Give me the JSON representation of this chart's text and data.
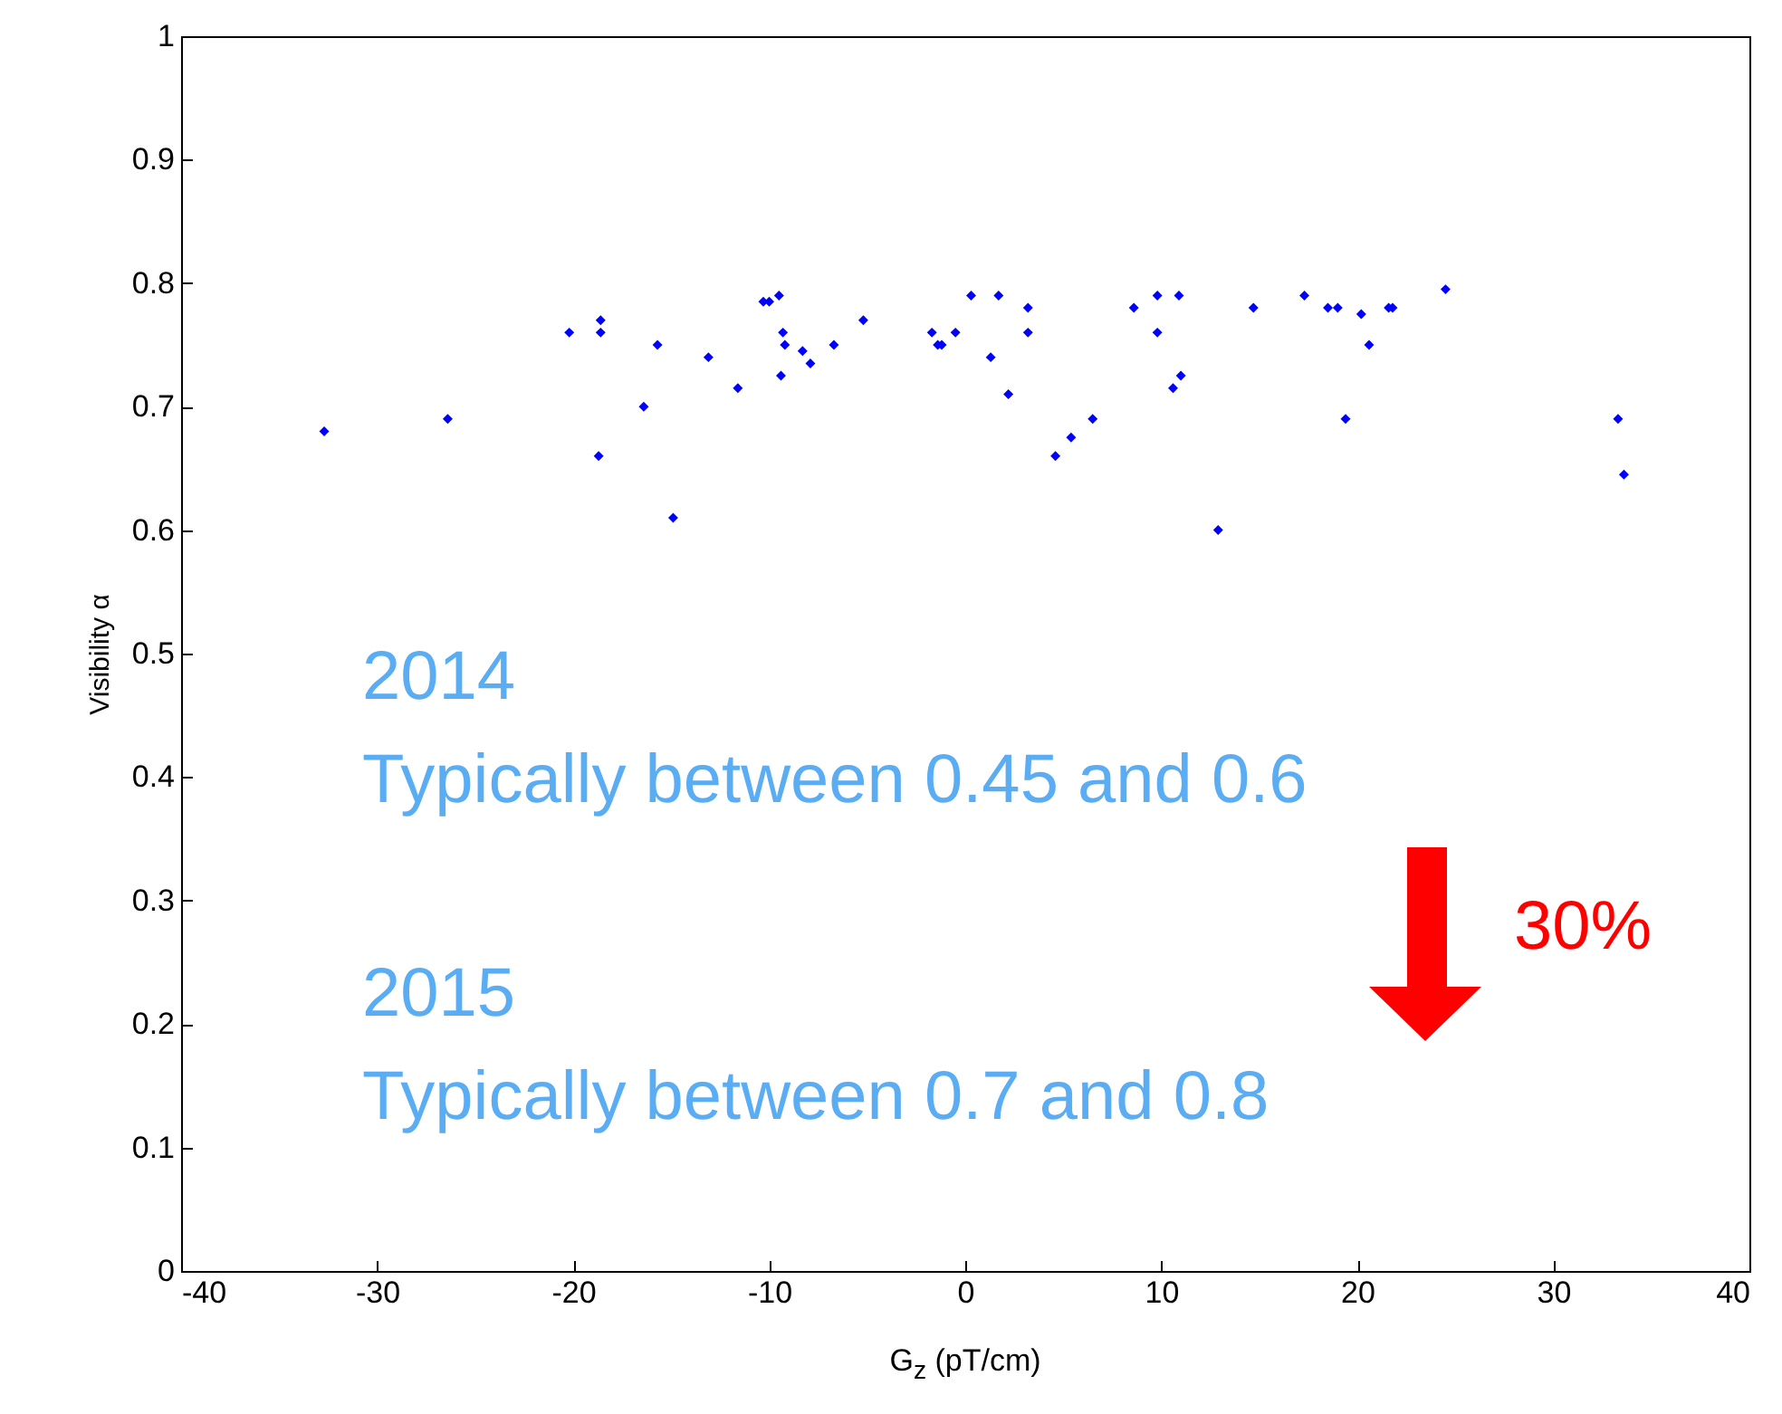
{
  "chart_data": {
    "type": "scatter",
    "xlabel": "G$_{z}$ (pT/cm)",
    "ylabel": "Visibility α",
    "xlim": [
      -40,
      40
    ],
    "ylim": [
      0,
      1
    ],
    "xticks": [
      -40,
      -30,
      -20,
      -10,
      0,
      10,
      20,
      30,
      40
    ],
    "yticks": [
      0,
      0.1,
      0.2,
      0.3,
      0.4,
      0.5,
      0.6,
      0.7,
      0.8,
      0.9,
      1
    ],
    "marker": "diamond",
    "grid": false,
    "legend": false,
    "series": [
      {
        "color": "#0000ff",
        "x": [
          -32.7,
          -26.4,
          -20.2,
          -18.6,
          -18.6,
          -16.4,
          -18.7,
          -15.7,
          -14.9,
          -13.1,
          -11.6,
          -10.3,
          -10.0,
          -9.5,
          -9.3,
          -9.2,
          -9.4,
          -8.3,
          -7.9,
          -6.7,
          -5.2,
          -1.7,
          -1.4,
          -1.2,
          -0.5,
          0.3,
          1.3,
          1.7,
          2.2,
          3.2,
          3.2,
          4.6,
          5.4,
          6.5,
          8.6,
          9.8,
          9.8,
          10.6,
          10.9,
          11.0,
          12.9,
          14.7,
          17.3,
          18.5,
          19.0,
          19.4,
          20.2,
          20.6,
          21.6,
          21.8,
          24.5,
          33.3,
          33.6
        ],
        "values": [
          0.68,
          0.69,
          0.76,
          0.77,
          0.76,
          0.7,
          0.66,
          0.75,
          0.61,
          0.74,
          0.715,
          0.785,
          0.785,
          0.79,
          0.76,
          0.75,
          0.725,
          0.745,
          0.735,
          0.75,
          0.77,
          0.76,
          0.75,
          0.75,
          0.76,
          0.79,
          0.74,
          0.79,
          0.71,
          0.78,
          0.76,
          0.66,
          0.675,
          0.69,
          0.78,
          0.79,
          0.76,
          0.715,
          0.79,
          0.725,
          0.6,
          0.78,
          0.79,
          0.78,
          0.78,
          0.69,
          0.775,
          0.75,
          0.78,
          0.78,
          0.795,
          0.69,
          0.645
        ]
      }
    ],
    "annotations": [
      "2014",
      "Typically between 0.45 and 0.6",
      "2015",
      "Typically between 0.7 and 0.8",
      "30%"
    ]
  }
}
